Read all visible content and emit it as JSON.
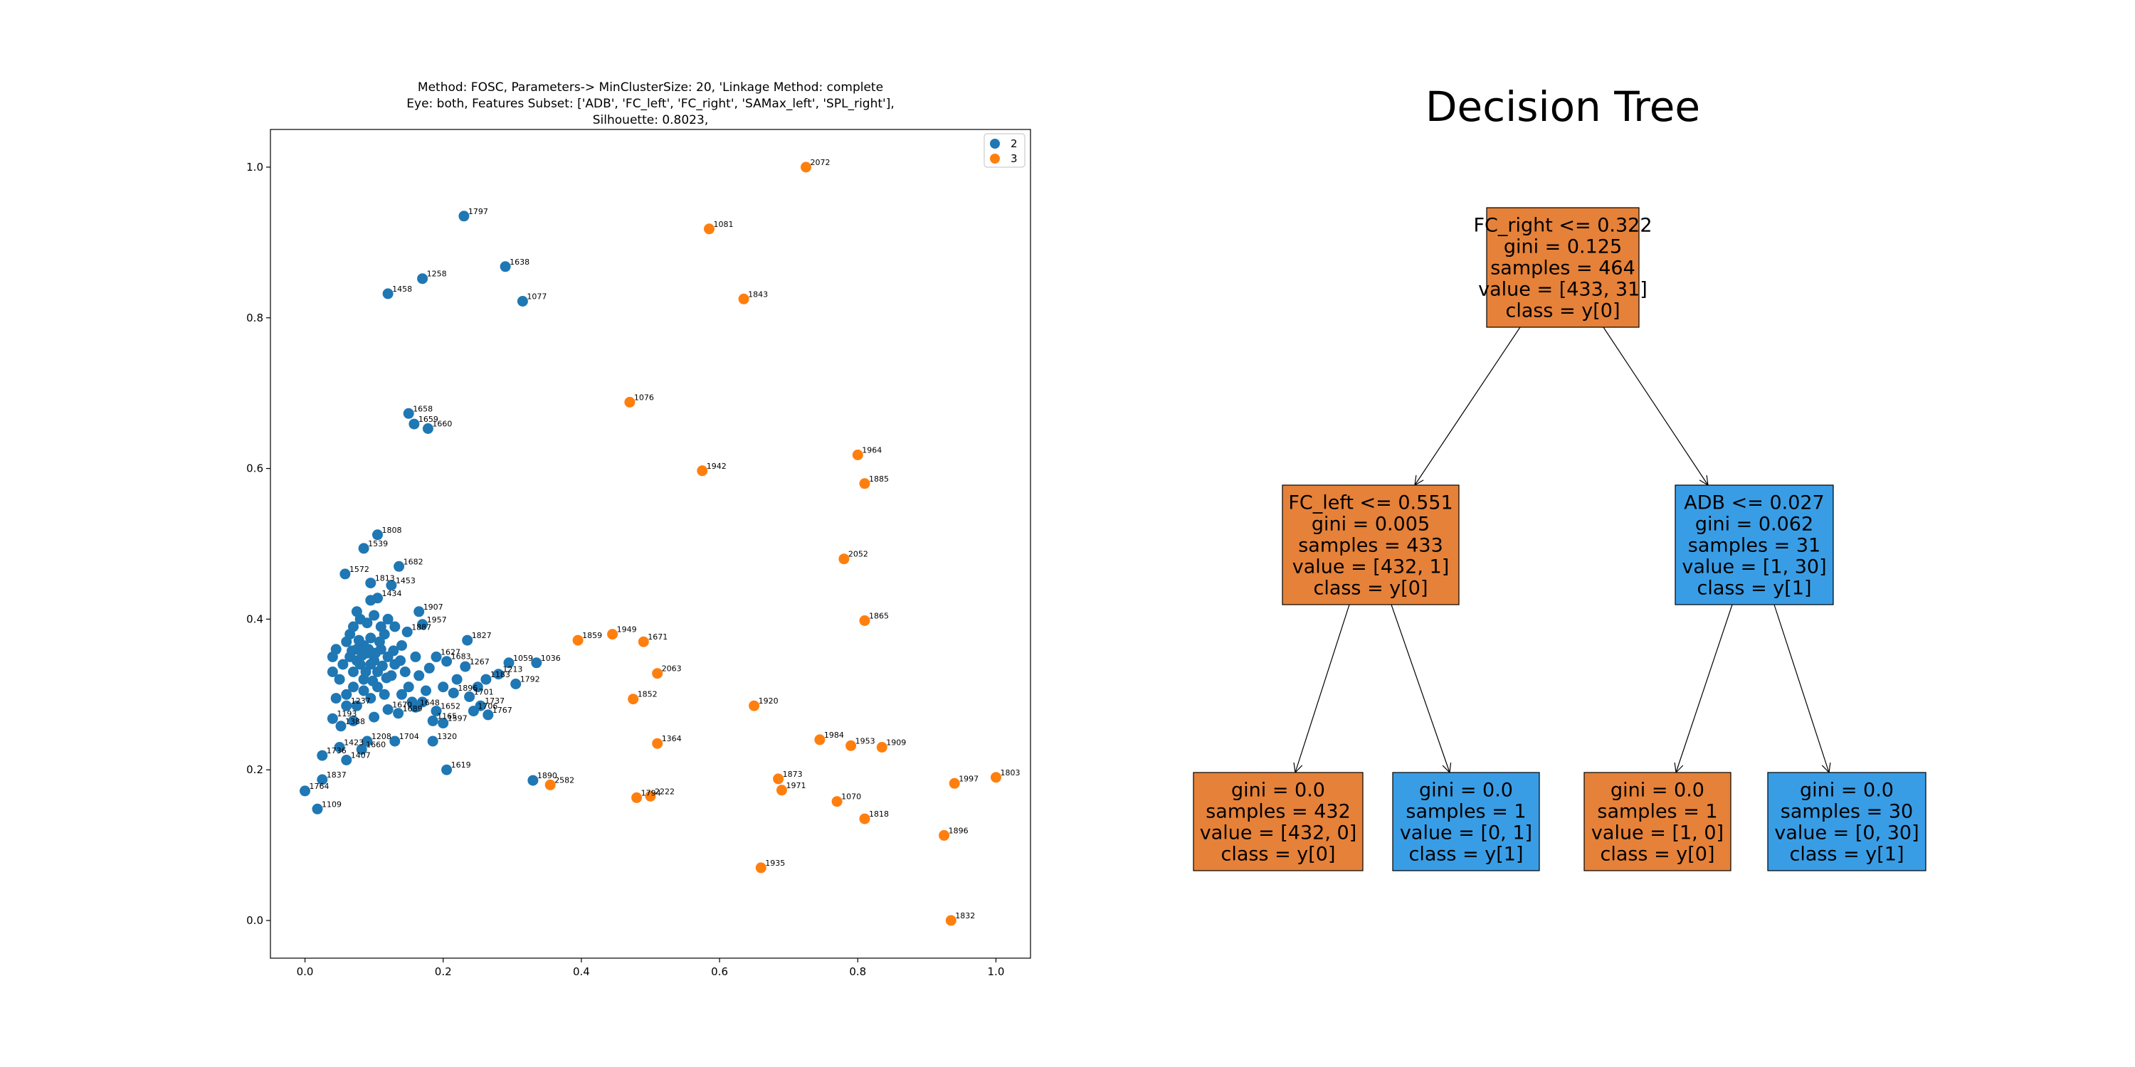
{
  "chart_data": [
    {
      "type": "scatter",
      "title_lines": [
        "Method: FOSC, Parameters-> MinClusterSize: 20, 'Linkage Method: complete",
        "Eye: both, Features Subset: ['ADB', 'FC_left', 'FC_right', 'SAMax_left', 'SPL_right'],",
        "Silhouette: 0.8023,"
      ],
      "xlim": [
        -0.05,
        1.05
      ],
      "ylim": [
        -0.05,
        1.05
      ],
      "x_ticks": [
        0.0,
        0.2,
        0.4,
        0.6,
        0.8,
        1.0
      ],
      "x_tick_labels": [
        "0.0",
        "0.2",
        "0.4",
        "0.6",
        "0.8",
        "1.0"
      ],
      "y_ticks": [
        0.0,
        0.2,
        0.4,
        0.6,
        0.8,
        1.0
      ],
      "y_tick_labels": [
        "0.0",
        "0.2",
        "0.4",
        "0.6",
        "0.8",
        "1.0"
      ],
      "legend_position": "top-right",
      "series": [
        {
          "name": "2",
          "color": "#1f77b4",
          "points": [
            {
              "x": 0.23,
              "y": 0.935,
              "label": "1797"
            },
            {
              "x": 0.29,
              "y": 0.868,
              "label": "1638"
            },
            {
              "x": 0.17,
              "y": 0.852,
              "label": "1258"
            },
            {
              "x": 0.12,
              "y": 0.832,
              "label": "1458"
            },
            {
              "x": 0.315,
              "y": 0.822,
              "label": "1077"
            },
            {
              "x": 0.15,
              "y": 0.673,
              "label": "1658"
            },
            {
              "x": 0.158,
              "y": 0.659,
              "label": "1659"
            },
            {
              "x": 0.178,
              "y": 0.653,
              "label": "1660"
            },
            {
              "x": 0.105,
              "y": 0.512,
              "label": "1808"
            },
            {
              "x": 0.085,
              "y": 0.494,
              "label": "1539"
            },
            {
              "x": 0.058,
              "y": 0.46,
              "label": "1572"
            },
            {
              "x": 0.136,
              "y": 0.47,
              "label": "1682"
            },
            {
              "x": 0.095,
              "y": 0.448,
              "label": "1813"
            },
            {
              "x": 0.125,
              "y": 0.445,
              "label": "1453"
            },
            {
              "x": 0.105,
              "y": 0.428,
              "label": "1434"
            },
            {
              "x": 0.165,
              "y": 0.41,
              "label": "1907"
            },
            {
              "x": 0.17,
              "y": 0.393,
              "label": "1957"
            },
            {
              "x": 0.148,
              "y": 0.383,
              "label": "1887"
            },
            {
              "x": 0.235,
              "y": 0.372,
              "label": "1827"
            },
            {
              "x": 0.19,
              "y": 0.35,
              "label": "1627"
            },
            {
              "x": 0.205,
              "y": 0.344,
              "label": "1683"
            },
            {
              "x": 0.232,
              "y": 0.337,
              "label": "1267"
            },
            {
              "x": 0.295,
              "y": 0.342,
              "label": "1059"
            },
            {
              "x": 0.335,
              "y": 0.342,
              "label": "1036"
            },
            {
              "x": 0.28,
              "y": 0.327,
              "label": "1213"
            },
            {
              "x": 0.262,
              "y": 0.32,
              "label": "1183"
            },
            {
              "x": 0.305,
              "y": 0.314,
              "label": "1792"
            },
            {
              "x": 0.215,
              "y": 0.302,
              "label": "1896"
            },
            {
              "x": 0.238,
              "y": 0.297,
              "label": "1701"
            },
            {
              "x": 0.254,
              "y": 0.285,
              "label": "1737"
            },
            {
              "x": 0.244,
              "y": 0.278,
              "label": "1706"
            },
            {
              "x": 0.265,
              "y": 0.273,
              "label": "1767"
            },
            {
              "x": 0.19,
              "y": 0.278,
              "label": "1652"
            },
            {
              "x": 0.185,
              "y": 0.265,
              "label": "1165"
            },
            {
              "x": 0.2,
              "y": 0.262,
              "label": "1597"
            },
            {
              "x": 0.16,
              "y": 0.283,
              "label": "1648"
            },
            {
              "x": 0.12,
              "y": 0.28,
              "label": "1670"
            },
            {
              "x": 0.135,
              "y": 0.275,
              "label": "1689"
            },
            {
              "x": 0.04,
              "y": 0.268,
              "label": "1193"
            },
            {
              "x": 0.052,
              "y": 0.258,
              "label": "1388"
            },
            {
              "x": 0.06,
              "y": 0.285,
              "label": "1237"
            },
            {
              "x": 0.09,
              "y": 0.238,
              "label": "1208"
            },
            {
              "x": 0.13,
              "y": 0.238,
              "label": "1704"
            },
            {
              "x": 0.185,
              "y": 0.238,
              "label": "1320"
            },
            {
              "x": 0.082,
              "y": 0.227,
              "label": "1660"
            },
            {
              "x": 0.05,
              "y": 0.23,
              "label": "1423"
            },
            {
              "x": 0.025,
              "y": 0.219,
              "label": "1736"
            },
            {
              "x": 0.06,
              "y": 0.213,
              "label": "1407"
            },
            {
              "x": 0.205,
              "y": 0.2,
              "label": "1619"
            },
            {
              "x": 0.025,
              "y": 0.187,
              "label": "1837"
            },
            {
              "x": 0.0,
              "y": 0.172,
              "label": "1764"
            },
            {
              "x": 0.018,
              "y": 0.148,
              "label": "1109"
            },
            {
              "x": 0.33,
              "y": 0.186,
              "label": "1890"
            },
            {
              "x": 0.06,
              "y": 0.37,
              "label": ""
            },
            {
              "x": 0.065,
              "y": 0.35,
              "label": ""
            },
            {
              "x": 0.07,
              "y": 0.33,
              "label": ""
            },
            {
              "x": 0.075,
              "y": 0.36,
              "label": ""
            },
            {
              "x": 0.08,
              "y": 0.34,
              "label": ""
            },
            {
              "x": 0.085,
              "y": 0.32,
              "label": ""
            },
            {
              "x": 0.09,
              "y": 0.355,
              "label": ""
            },
            {
              "x": 0.095,
              "y": 0.375,
              "label": ""
            },
            {
              "x": 0.1,
              "y": 0.345,
              "label": ""
            },
            {
              "x": 0.105,
              "y": 0.33,
              "label": ""
            },
            {
              "x": 0.11,
              "y": 0.36,
              "label": ""
            },
            {
              "x": 0.115,
              "y": 0.38,
              "label": ""
            },
            {
              "x": 0.12,
              "y": 0.35,
              "label": ""
            },
            {
              "x": 0.125,
              "y": 0.325,
              "label": ""
            },
            {
              "x": 0.13,
              "y": 0.34,
              "label": ""
            },
            {
              "x": 0.14,
              "y": 0.365,
              "label": ""
            },
            {
              "x": 0.145,
              "y": 0.33,
              "label": ""
            },
            {
              "x": 0.15,
              "y": 0.31,
              "label": ""
            },
            {
              "x": 0.16,
              "y": 0.35,
              "label": ""
            },
            {
              "x": 0.165,
              "y": 0.325,
              "label": ""
            },
            {
              "x": 0.175,
              "y": 0.305,
              "label": ""
            },
            {
              "x": 0.18,
              "y": 0.335,
              "label": ""
            },
            {
              "x": 0.055,
              "y": 0.34,
              "label": ""
            },
            {
              "x": 0.045,
              "y": 0.36,
              "label": ""
            },
            {
              "x": 0.05,
              "y": 0.32,
              "label": ""
            },
            {
              "x": 0.06,
              "y": 0.3,
              "label": ""
            },
            {
              "x": 0.07,
              "y": 0.39,
              "label": ""
            },
            {
              "x": 0.08,
              "y": 0.4,
              "label": ""
            },
            {
              "x": 0.09,
              "y": 0.395,
              "label": ""
            },
            {
              "x": 0.1,
              "y": 0.405,
              "label": ""
            },
            {
              "x": 0.11,
              "y": 0.39,
              "label": ""
            },
            {
              "x": 0.12,
              "y": 0.4,
              "label": ""
            },
            {
              "x": 0.13,
              "y": 0.39,
              "label": ""
            },
            {
              "x": 0.085,
              "y": 0.305,
              "label": ""
            },
            {
              "x": 0.095,
              "y": 0.295,
              "label": ""
            },
            {
              "x": 0.105,
              "y": 0.31,
              "label": ""
            },
            {
              "x": 0.115,
              "y": 0.3,
              "label": ""
            },
            {
              "x": 0.07,
              "y": 0.31,
              "label": ""
            },
            {
              "x": 0.075,
              "y": 0.285,
              "label": ""
            },
            {
              "x": 0.045,
              "y": 0.295,
              "label": ""
            },
            {
              "x": 0.04,
              "y": 0.33,
              "label": ""
            },
            {
              "x": 0.04,
              "y": 0.35,
              "label": ""
            },
            {
              "x": 0.14,
              "y": 0.3,
              "label": ""
            },
            {
              "x": 0.155,
              "y": 0.29,
              "label": ""
            },
            {
              "x": 0.17,
              "y": 0.29,
              "label": ""
            },
            {
              "x": 0.2,
              "y": 0.31,
              "label": ""
            },
            {
              "x": 0.22,
              "y": 0.32,
              "label": ""
            },
            {
              "x": 0.25,
              "y": 0.31,
              "label": ""
            },
            {
              "x": 0.07,
              "y": 0.265,
              "label": ""
            },
            {
              "x": 0.1,
              "y": 0.27,
              "label": ""
            },
            {
              "x": 0.075,
              "y": 0.41,
              "label": ""
            },
            {
              "x": 0.095,
              "y": 0.425,
              "label": ""
            },
            {
              "x": 0.065,
              "y": 0.38,
              "label": ""
            },
            {
              "x": 0.085,
              "y": 0.365,
              "label": ""
            },
            {
              "x": 0.095,
              "y": 0.34,
              "label": ""
            },
            {
              "x": 0.075,
              "y": 0.345,
              "label": ""
            },
            {
              "x": 0.088,
              "y": 0.33,
              "label": ""
            },
            {
              "x": 0.092,
              "y": 0.36,
              "label": ""
            },
            {
              "x": 0.102,
              "y": 0.355,
              "label": ""
            },
            {
              "x": 0.108,
              "y": 0.37,
              "label": ""
            },
            {
              "x": 0.083,
              "y": 0.352,
              "label": ""
            },
            {
              "x": 0.078,
              "y": 0.372,
              "label": ""
            },
            {
              "x": 0.068,
              "y": 0.358,
              "label": ""
            },
            {
              "x": 0.098,
              "y": 0.318,
              "label": ""
            },
            {
              "x": 0.112,
              "y": 0.338,
              "label": ""
            },
            {
              "x": 0.118,
              "y": 0.322,
              "label": ""
            },
            {
              "x": 0.128,
              "y": 0.358,
              "label": ""
            },
            {
              "x": 0.138,
              "y": 0.345,
              "label": ""
            }
          ]
        },
        {
          "name": "3",
          "color": "#ff7f0e",
          "points": [
            {
              "x": 0.725,
              "y": 1.0,
              "label": "2072"
            },
            {
              "x": 0.585,
              "y": 0.918,
              "label": "1081"
            },
            {
              "x": 0.635,
              "y": 0.825,
              "label": "1843"
            },
            {
              "x": 0.47,
              "y": 0.688,
              "label": "1076"
            },
            {
              "x": 0.8,
              "y": 0.618,
              "label": "1964"
            },
            {
              "x": 0.575,
              "y": 0.597,
              "label": "1942"
            },
            {
              "x": 0.81,
              "y": 0.58,
              "label": "1885"
            },
            {
              "x": 0.78,
              "y": 0.48,
              "label": "2052"
            },
            {
              "x": 0.81,
              "y": 0.398,
              "label": "1865"
            },
            {
              "x": 0.395,
              "y": 0.372,
              "label": "1859"
            },
            {
              "x": 0.445,
              "y": 0.38,
              "label": "1949"
            },
            {
              "x": 0.49,
              "y": 0.37,
              "label": "1671"
            },
            {
              "x": 0.51,
              "y": 0.328,
              "label": "2063"
            },
            {
              "x": 0.475,
              "y": 0.294,
              "label": "1852"
            },
            {
              "x": 0.65,
              "y": 0.285,
              "label": "1920"
            },
            {
              "x": 0.51,
              "y": 0.235,
              "label": "1364"
            },
            {
              "x": 0.745,
              "y": 0.24,
              "label": "1984"
            },
            {
              "x": 0.79,
              "y": 0.232,
              "label": "1953"
            },
            {
              "x": 0.835,
              "y": 0.23,
              "label": "1909"
            },
            {
              "x": 0.355,
              "y": 0.18,
              "label": "2582"
            },
            {
              "x": 0.685,
              "y": 0.188,
              "label": "1873"
            },
            {
              "x": 0.69,
              "y": 0.173,
              "label": "1971"
            },
            {
              "x": 0.48,
              "y": 0.163,
              "label": "1794"
            },
            {
              "x": 0.5,
              "y": 0.165,
              "label": "2222"
            },
            {
              "x": 0.77,
              "y": 0.158,
              "label": "1070"
            },
            {
              "x": 0.81,
              "y": 0.135,
              "label": "1818"
            },
            {
              "x": 0.94,
              "y": 0.182,
              "label": "1997"
            },
            {
              "x": 1.0,
              "y": 0.19,
              "label": "1803"
            },
            {
              "x": 0.925,
              "y": 0.113,
              "label": "1896"
            },
            {
              "x": 0.66,
              "y": 0.07,
              "label": "1935"
            },
            {
              "x": 0.935,
              "y": 0.0,
              "label": "1832"
            }
          ]
        }
      ]
    },
    {
      "type": "tree",
      "title": "Decision Tree",
      "colors": {
        "orange": "#e58139",
        "blue": "#399de5"
      },
      "nodes": [
        {
          "id": "root",
          "fill": "orange",
          "lines": [
            "FC_right <= 0.322",
            "gini = 0.125",
            "samples = 464",
            "value = [433, 31]",
            "class = y[0]"
          ]
        },
        {
          "id": "l",
          "parent": "root",
          "fill": "orange",
          "lines": [
            "FC_left <= 0.551",
            "gini = 0.005",
            "samples = 433",
            "value = [432, 1]",
            "class = y[0]"
          ]
        },
        {
          "id": "r",
          "parent": "root",
          "fill": "blue",
          "lines": [
            "ADB <= 0.027",
            "gini = 0.062",
            "samples = 31",
            "value = [1, 30]",
            "class = y[1]"
          ]
        },
        {
          "id": "ll",
          "parent": "l",
          "fill": "orange",
          "lines": [
            "gini = 0.0",
            "samples = 432",
            "value = [432, 0]",
            "class = y[0]"
          ]
        },
        {
          "id": "lr",
          "parent": "l",
          "fill": "blue",
          "lines": [
            "gini = 0.0",
            "samples = 1",
            "value = [0, 1]",
            "class = y[1]"
          ]
        },
        {
          "id": "rl",
          "parent": "r",
          "fill": "orange",
          "lines": [
            "gini = 0.0",
            "samples = 1",
            "value = [1, 0]",
            "class = y[0]"
          ]
        },
        {
          "id": "rr",
          "parent": "r",
          "fill": "blue",
          "lines": [
            "gini = 0.0",
            "samples = 30",
            "value = [0, 30]",
            "class = y[1]"
          ]
        }
      ]
    }
  ]
}
